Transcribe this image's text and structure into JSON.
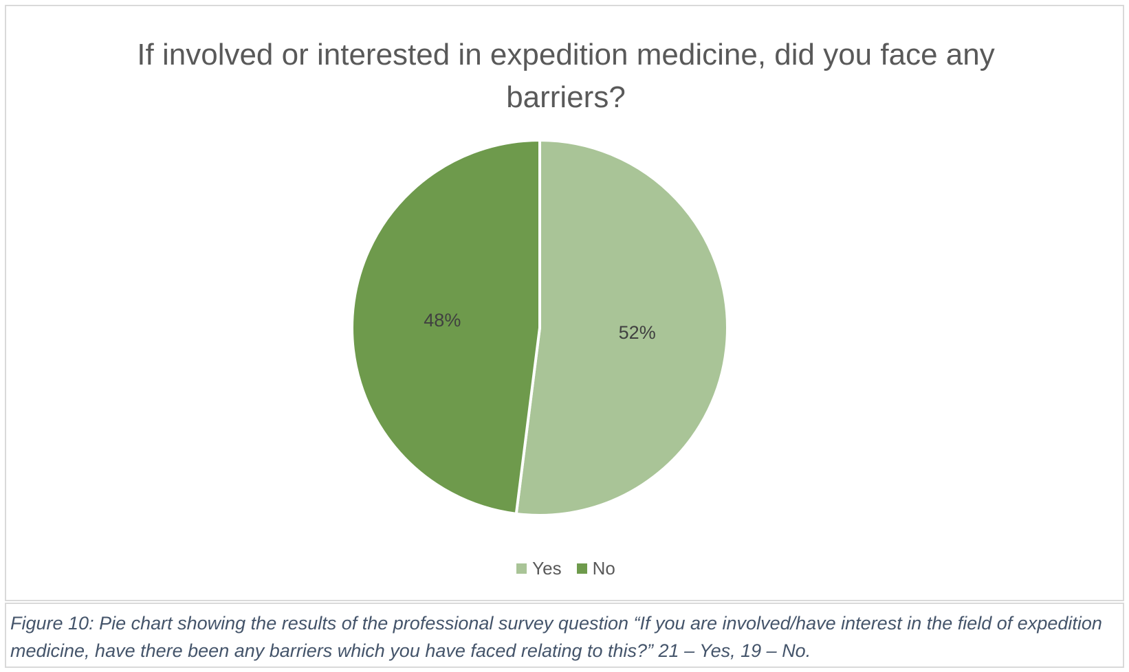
{
  "chart_data": {
    "type": "pie",
    "title": "If involved or interested in expedition medicine, did you face any barriers?",
    "categories": [
      "Yes",
      "No"
    ],
    "values": [
      52,
      48
    ],
    "labels": [
      "52%",
      "48%"
    ],
    "colors": [
      "#a9c497",
      "#6e9a4c"
    ],
    "legend_position": "bottom"
  },
  "caption": {
    "text": "Figure 10: Pie chart showing the results of the professional survey question “If you are involved/have interest in the field of expedition medicine, have there been any barriers which you have faced relating to this?” 21 – Yes, 19 – No."
  }
}
